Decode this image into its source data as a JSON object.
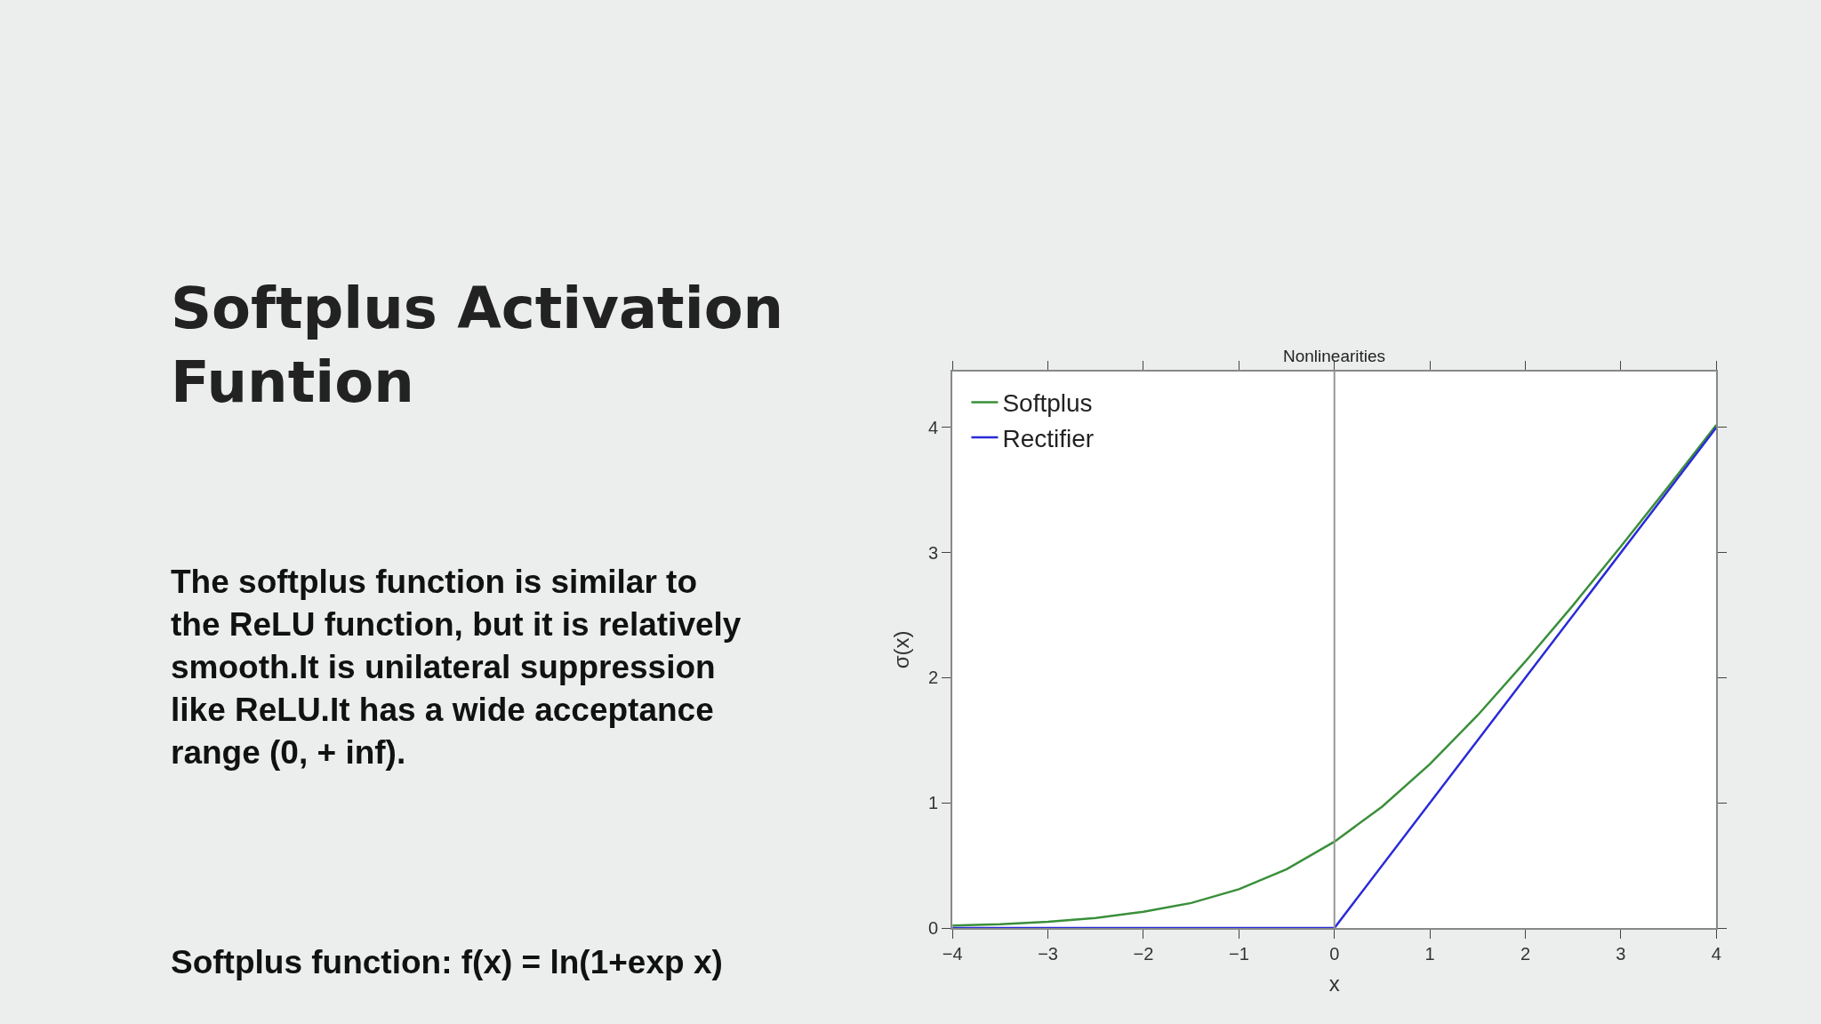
{
  "chart_data": {
    "type": "line",
    "title": "Nonlinearities",
    "xlabel": "x",
    "ylabel": "σ(x)",
    "annotations": [
      "Softplus Activation\nFuntion",
      "The softplus function is similar to\nthe ReLU function, but it is relatively\nsmooth.It is unilateral suppression\nlike ReLU.It has a wide acceptance\nrange (0, + inf).",
      "Softplus function: f(x) = ln(1+exp x)"
    ],
    "x": [
      -4,
      -3.5,
      -3,
      -2.5,
      -2,
      -1.5,
      -1,
      -0.5,
      0,
      0.5,
      1,
      1.5,
      2,
      2.5,
      3,
      3.5,
      4
    ],
    "series": [
      {
        "name": "Softplus",
        "color": "#3a8f3a",
        "values": [
          0.02,
          0.03,
          0.05,
          0.08,
          0.13,
          0.2,
          0.31,
          0.47,
          0.69,
          0.97,
          1.31,
          1.7,
          2.13,
          2.58,
          3.05,
          3.53,
          4.02
        ]
      },
      {
        "name": "Rectifier",
        "color": "#2a2ad8",
        "x": [
          -4,
          0,
          4
        ],
        "values": [
          0,
          0,
          4
        ]
      }
    ],
    "xlim": [
      -4,
      4
    ],
    "xticks": [
      -4,
      -3,
      -2,
      -1,
      0,
      1,
      2,
      3,
      4
    ],
    "ylim": [
      0,
      4.45
    ],
    "yticks": [
      0,
      1,
      2,
      3,
      4
    ],
    "ref_lines": [
      {
        "axis": "x",
        "value": 0,
        "color": "#999999"
      }
    ],
    "legend": "top left",
    "marker": "none",
    "line_style": "solid"
  }
}
